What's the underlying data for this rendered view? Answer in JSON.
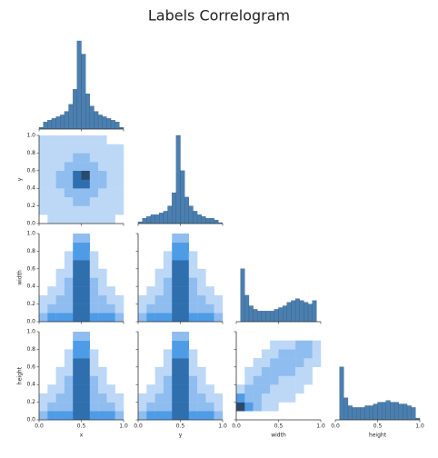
{
  "chart_data": {
    "type": "pairplot",
    "title": "Labels Correlogram",
    "variables": [
      "x",
      "y",
      "width",
      "height"
    ],
    "xlim": [
      0,
      1
    ],
    "ylim": [
      0,
      1
    ],
    "xticks": [
      {
        "value": 0,
        "label": "0.0"
      },
      {
        "value": 0.5,
        "label": "0.5"
      },
      {
        "value": 1,
        "label": "1.0"
      }
    ],
    "yticks": [
      {
        "value": 0,
        "label": "0.0"
      },
      {
        "value": 0.2,
        "label": "0.2"
      },
      {
        "value": 0.4,
        "label": "0.4"
      },
      {
        "value": 0.6,
        "label": "0.6"
      },
      {
        "value": 0.8,
        "label": "0.8"
      },
      {
        "value": 1,
        "label": "1.0"
      }
    ],
    "bins": [
      0,
      0.05,
      0.1,
      0.15,
      0.2,
      0.25,
      0.3,
      0.35,
      0.4,
      0.45,
      0.5,
      0.55,
      0.6,
      0.65,
      0.7,
      0.75,
      0.8,
      0.85,
      0.9,
      0.95,
      1
    ],
    "countlim": [
      0,
      100
    ],
    "color": "#4a7fb0",
    "cmap": [
      "#bcd8f6",
      "#8fbdef",
      "#4f9ce6",
      "#2f6fae",
      "#2a4a6b"
    ],
    "histograms": [
      {
        "counts": [
          2,
          8,
          10,
          12,
          14,
          16,
          20,
          28,
          45,
          100,
          85,
          40,
          26,
          20,
          16,
          14,
          12,
          10,
          8,
          2
        ]
      },
      {
        "counts": [
          2,
          6,
          8,
          10,
          10,
          12,
          14,
          20,
          35,
          100,
          60,
          30,
          20,
          14,
          10,
          8,
          6,
          6,
          4,
          1
        ]
      },
      {
        "counts": [
          0,
          60,
          30,
          18,
          14,
          12,
          12,
          12,
          12,
          14,
          16,
          18,
          22,
          24,
          26,
          24,
          22,
          20,
          24,
          0
        ]
      },
      {
        "counts": [
          0,
          60,
          25,
          16,
          14,
          14,
          14,
          16,
          16,
          18,
          20,
          20,
          22,
          20,
          20,
          18,
          18,
          16,
          14,
          2
        ]
      }
    ],
    "pairs": [
      {
        "counts": [
          [
            0,
            1,
            1,
            1,
            1,
            1,
            1,
            1,
            1,
            0
          ],
          [
            1,
            1,
            1,
            1,
            1,
            1,
            1,
            1,
            1,
            1
          ],
          [
            1,
            1,
            1,
            1,
            2,
            2,
            1,
            1,
            1,
            1
          ],
          [
            1,
            1,
            1,
            2,
            2,
            2,
            2,
            1,
            1,
            1
          ],
          [
            1,
            1,
            2,
            2,
            4,
            4,
            2,
            2,
            1,
            1
          ],
          [
            1,
            1,
            2,
            2,
            4,
            5,
            2,
            2,
            1,
            1
          ],
          [
            1,
            1,
            1,
            2,
            2,
            2,
            2,
            1,
            1,
            1
          ],
          [
            1,
            1,
            1,
            1,
            2,
            2,
            1,
            1,
            1,
            1
          ],
          [
            1,
            1,
            1,
            1,
            1,
            1,
            1,
            1,
            1,
            1
          ],
          [
            1,
            1,
            1,
            1,
            1,
            1,
            1,
            1,
            0,
            0
          ]
        ]
      },
      {
        "counts": [
          [
            2,
            3,
            3,
            3,
            4,
            4,
            3,
            3,
            3,
            2
          ],
          [
            1,
            2,
            2,
            2,
            4,
            4,
            2,
            2,
            2,
            1
          ],
          [
            1,
            1,
            2,
            2,
            4,
            4,
            2,
            2,
            1,
            1
          ],
          [
            0,
            1,
            1,
            2,
            4,
            4,
            2,
            1,
            1,
            0
          ],
          [
            0,
            0,
            1,
            2,
            4,
            4,
            2,
            1,
            0,
            0
          ],
          [
            0,
            0,
            1,
            1,
            4,
            4,
            1,
            1,
            0,
            0
          ],
          [
            0,
            0,
            0,
            1,
            4,
            4,
            1,
            0,
            0,
            0
          ],
          [
            0,
            0,
            0,
            1,
            3,
            3,
            1,
            0,
            0,
            0
          ],
          [
            0,
            0,
            0,
            0,
            3,
            3,
            0,
            0,
            0,
            0
          ],
          [
            0,
            0,
            0,
            0,
            2,
            2,
            0,
            0,
            0,
            0
          ]
        ]
      },
      {
        "counts": [
          [
            2,
            3,
            3,
            3,
            4,
            4,
            3,
            3,
            3,
            2
          ],
          [
            1,
            2,
            2,
            2,
            4,
            4,
            2,
            2,
            2,
            1
          ],
          [
            1,
            1,
            2,
            2,
            4,
            4,
            2,
            2,
            1,
            1
          ],
          [
            0,
            1,
            1,
            2,
            4,
            4,
            2,
            1,
            1,
            0
          ],
          [
            0,
            0,
            1,
            2,
            4,
            4,
            2,
            1,
            0,
            0
          ],
          [
            0,
            0,
            1,
            1,
            4,
            4,
            1,
            1,
            0,
            0
          ],
          [
            0,
            0,
            0,
            1,
            4,
            4,
            1,
            0,
            0,
            0
          ],
          [
            0,
            0,
            0,
            1,
            3,
            3,
            1,
            0,
            0,
            0
          ],
          [
            0,
            0,
            0,
            0,
            3,
            3,
            0,
            0,
            0,
            0
          ],
          [
            0,
            0,
            0,
            0,
            2,
            2,
            0,
            0,
            0,
            0
          ]
        ]
      },
      {
        "counts": [
          [
            2,
            3,
            3,
            3,
            4,
            4,
            3,
            3,
            3,
            2
          ],
          [
            1,
            2,
            2,
            2,
            4,
            4,
            2,
            2,
            2,
            1
          ],
          [
            1,
            1,
            2,
            2,
            4,
            4,
            2,
            2,
            1,
            1
          ],
          [
            0,
            1,
            1,
            2,
            4,
            4,
            2,
            1,
            1,
            0
          ],
          [
            0,
            0,
            1,
            2,
            4,
            4,
            2,
            1,
            0,
            0
          ],
          [
            0,
            0,
            1,
            1,
            4,
            4,
            1,
            1,
            0,
            0
          ],
          [
            0,
            0,
            0,
            1,
            4,
            4,
            1,
            0,
            0,
            0
          ],
          [
            0,
            0,
            0,
            1,
            3,
            3,
            1,
            0,
            0,
            0
          ],
          [
            0,
            0,
            0,
            0,
            3,
            3,
            0,
            0,
            0,
            0
          ],
          [
            0,
            0,
            0,
            0,
            2,
            2,
            0,
            0,
            0,
            0
          ]
        ]
      },
      {
        "counts": [
          [
            2,
            3,
            3,
            3,
            4,
            4,
            3,
            3,
            3,
            2
          ],
          [
            1,
            2,
            2,
            2,
            4,
            4,
            2,
            2,
            2,
            1
          ],
          [
            1,
            1,
            2,
            2,
            4,
            4,
            2,
            2,
            1,
            1
          ],
          [
            0,
            1,
            1,
            2,
            4,
            4,
            2,
            1,
            1,
            0
          ],
          [
            0,
            0,
            1,
            2,
            4,
            4,
            2,
            1,
            0,
            0
          ],
          [
            0,
            0,
            1,
            1,
            4,
            4,
            1,
            1,
            0,
            0
          ],
          [
            0,
            0,
            0,
            1,
            4,
            4,
            1,
            0,
            0,
            0
          ],
          [
            0,
            0,
            0,
            1,
            3,
            3,
            1,
            0,
            0,
            0
          ],
          [
            0,
            0,
            0,
            0,
            3,
            3,
            0,
            0,
            0,
            0
          ],
          [
            0,
            0,
            0,
            0,
            2,
            2,
            0,
            0,
            0,
            0
          ]
        ]
      },
      {
        "counts": [
          [
            0,
            0,
            0,
            0,
            0,
            0,
            0,
            0,
            0,
            0
          ],
          [
            5,
            3,
            2,
            1,
            1,
            0,
            0,
            0,
            0,
            0
          ],
          [
            3,
            2,
            2,
            1,
            1,
            1,
            1,
            0,
            0,
            0
          ],
          [
            1,
            2,
            2,
            2,
            1,
            1,
            1,
            1,
            0,
            0
          ],
          [
            0,
            1,
            2,
            2,
            2,
            1,
            1,
            1,
            1,
            0
          ],
          [
            0,
            1,
            1,
            2,
            2,
            2,
            2,
            1,
            1,
            0
          ],
          [
            0,
            0,
            1,
            1,
            2,
            2,
            2,
            2,
            1,
            1
          ],
          [
            0,
            0,
            0,
            1,
            1,
            2,
            2,
            2,
            2,
            1
          ],
          [
            0,
            0,
            0,
            0,
            1,
            1,
            1,
            2,
            2,
            1
          ],
          [
            0,
            0,
            0,
            0,
            0,
            0,
            0,
            0,
            0,
            0
          ]
        ]
      }
    ]
  }
}
